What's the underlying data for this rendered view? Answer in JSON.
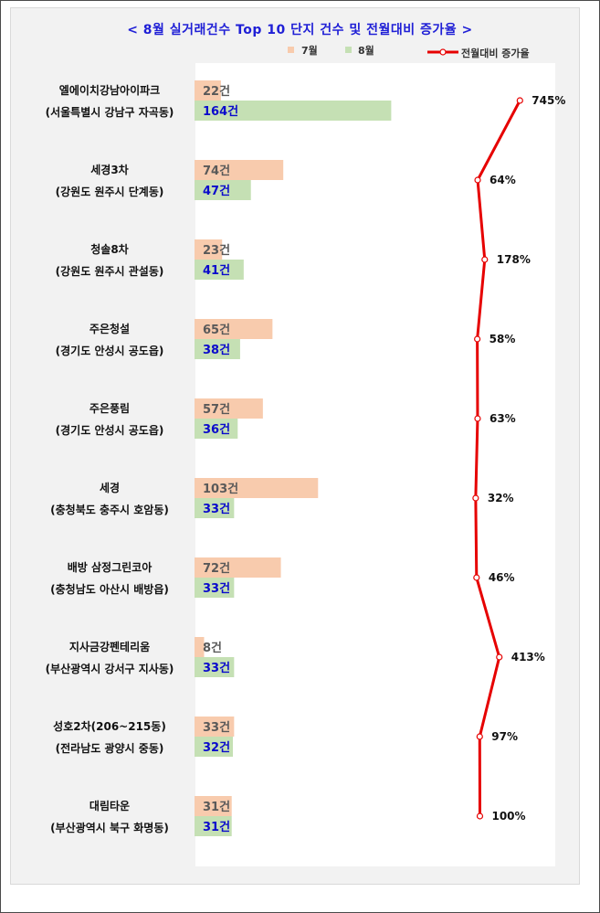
{
  "chart_data": {
    "type": "bar",
    "orientation": "horizontal",
    "title": "< 8월 실거래건수 Top 10 단지 건수 및 전월대비 증가율 >",
    "categories": [
      {
        "name": "엘에이치강남아이파크",
        "region": "(서울특별시 강남구 자곡동)"
      },
      {
        "name": "세경3차",
        "region": "(강원도 원주시 단계동)"
      },
      {
        "name": "청솔8차",
        "region": "(강원도 원주시 관설동)"
      },
      {
        "name": "주은청설",
        "region": "(경기도 안성시 공도읍)"
      },
      {
        "name": "주은풍림",
        "region": "(경기도 안성시 공도읍)"
      },
      {
        "name": "세경",
        "region": "(충청북도 충주시 호암동)"
      },
      {
        "name": "배방 삼정그린코아",
        "region": "(충청남도 아산시 배방읍)"
      },
      {
        "name": "지사금강펜테리움",
        "region": "(부산광역시 강서구 지사동)"
      },
      {
        "name": "성호2차(206~215동)",
        "region": "(전라남도 광양시 중동)"
      },
      {
        "name": "대림타운",
        "region": "(부산광역시 북구 화명동)"
      }
    ],
    "series": [
      {
        "name": "7월",
        "type": "bar",
        "color": "#f8cbad",
        "values": [
          22,
          74,
          23,
          65,
          57,
          103,
          72,
          8,
          33,
          31
        ],
        "labels": [
          "22건",
          "74건",
          "23건",
          "65건",
          "57건",
          "103건",
          "72건",
          "8건",
          "33건",
          "31건"
        ]
      },
      {
        "name": "8월",
        "type": "bar",
        "color": "#c5e0b4",
        "values": [
          164,
          47,
          41,
          38,
          36,
          33,
          33,
          33,
          32,
          31
        ],
        "labels": [
          "164건",
          "47건",
          "41건",
          "38건",
          "36건",
          "33건",
          "33건",
          "33건",
          "32건",
          "31건"
        ]
      },
      {
        "name": "전월대비 증가율",
        "type": "line",
        "color": "#e60000",
        "values": [
          745,
          64,
          178,
          58,
          63,
          32,
          46,
          413,
          97,
          100
        ],
        "labels": [
          "745%",
          "64%",
          "178%",
          "58%",
          "63%",
          "32%",
          "46%",
          "413%",
          "97%",
          "100%"
        ]
      }
    ],
    "bar_axis_range": [
      0,
      300
    ],
    "line_axis_range": [
      -4500,
      1300
    ],
    "legend_position": "top-right",
    "grid": false
  }
}
